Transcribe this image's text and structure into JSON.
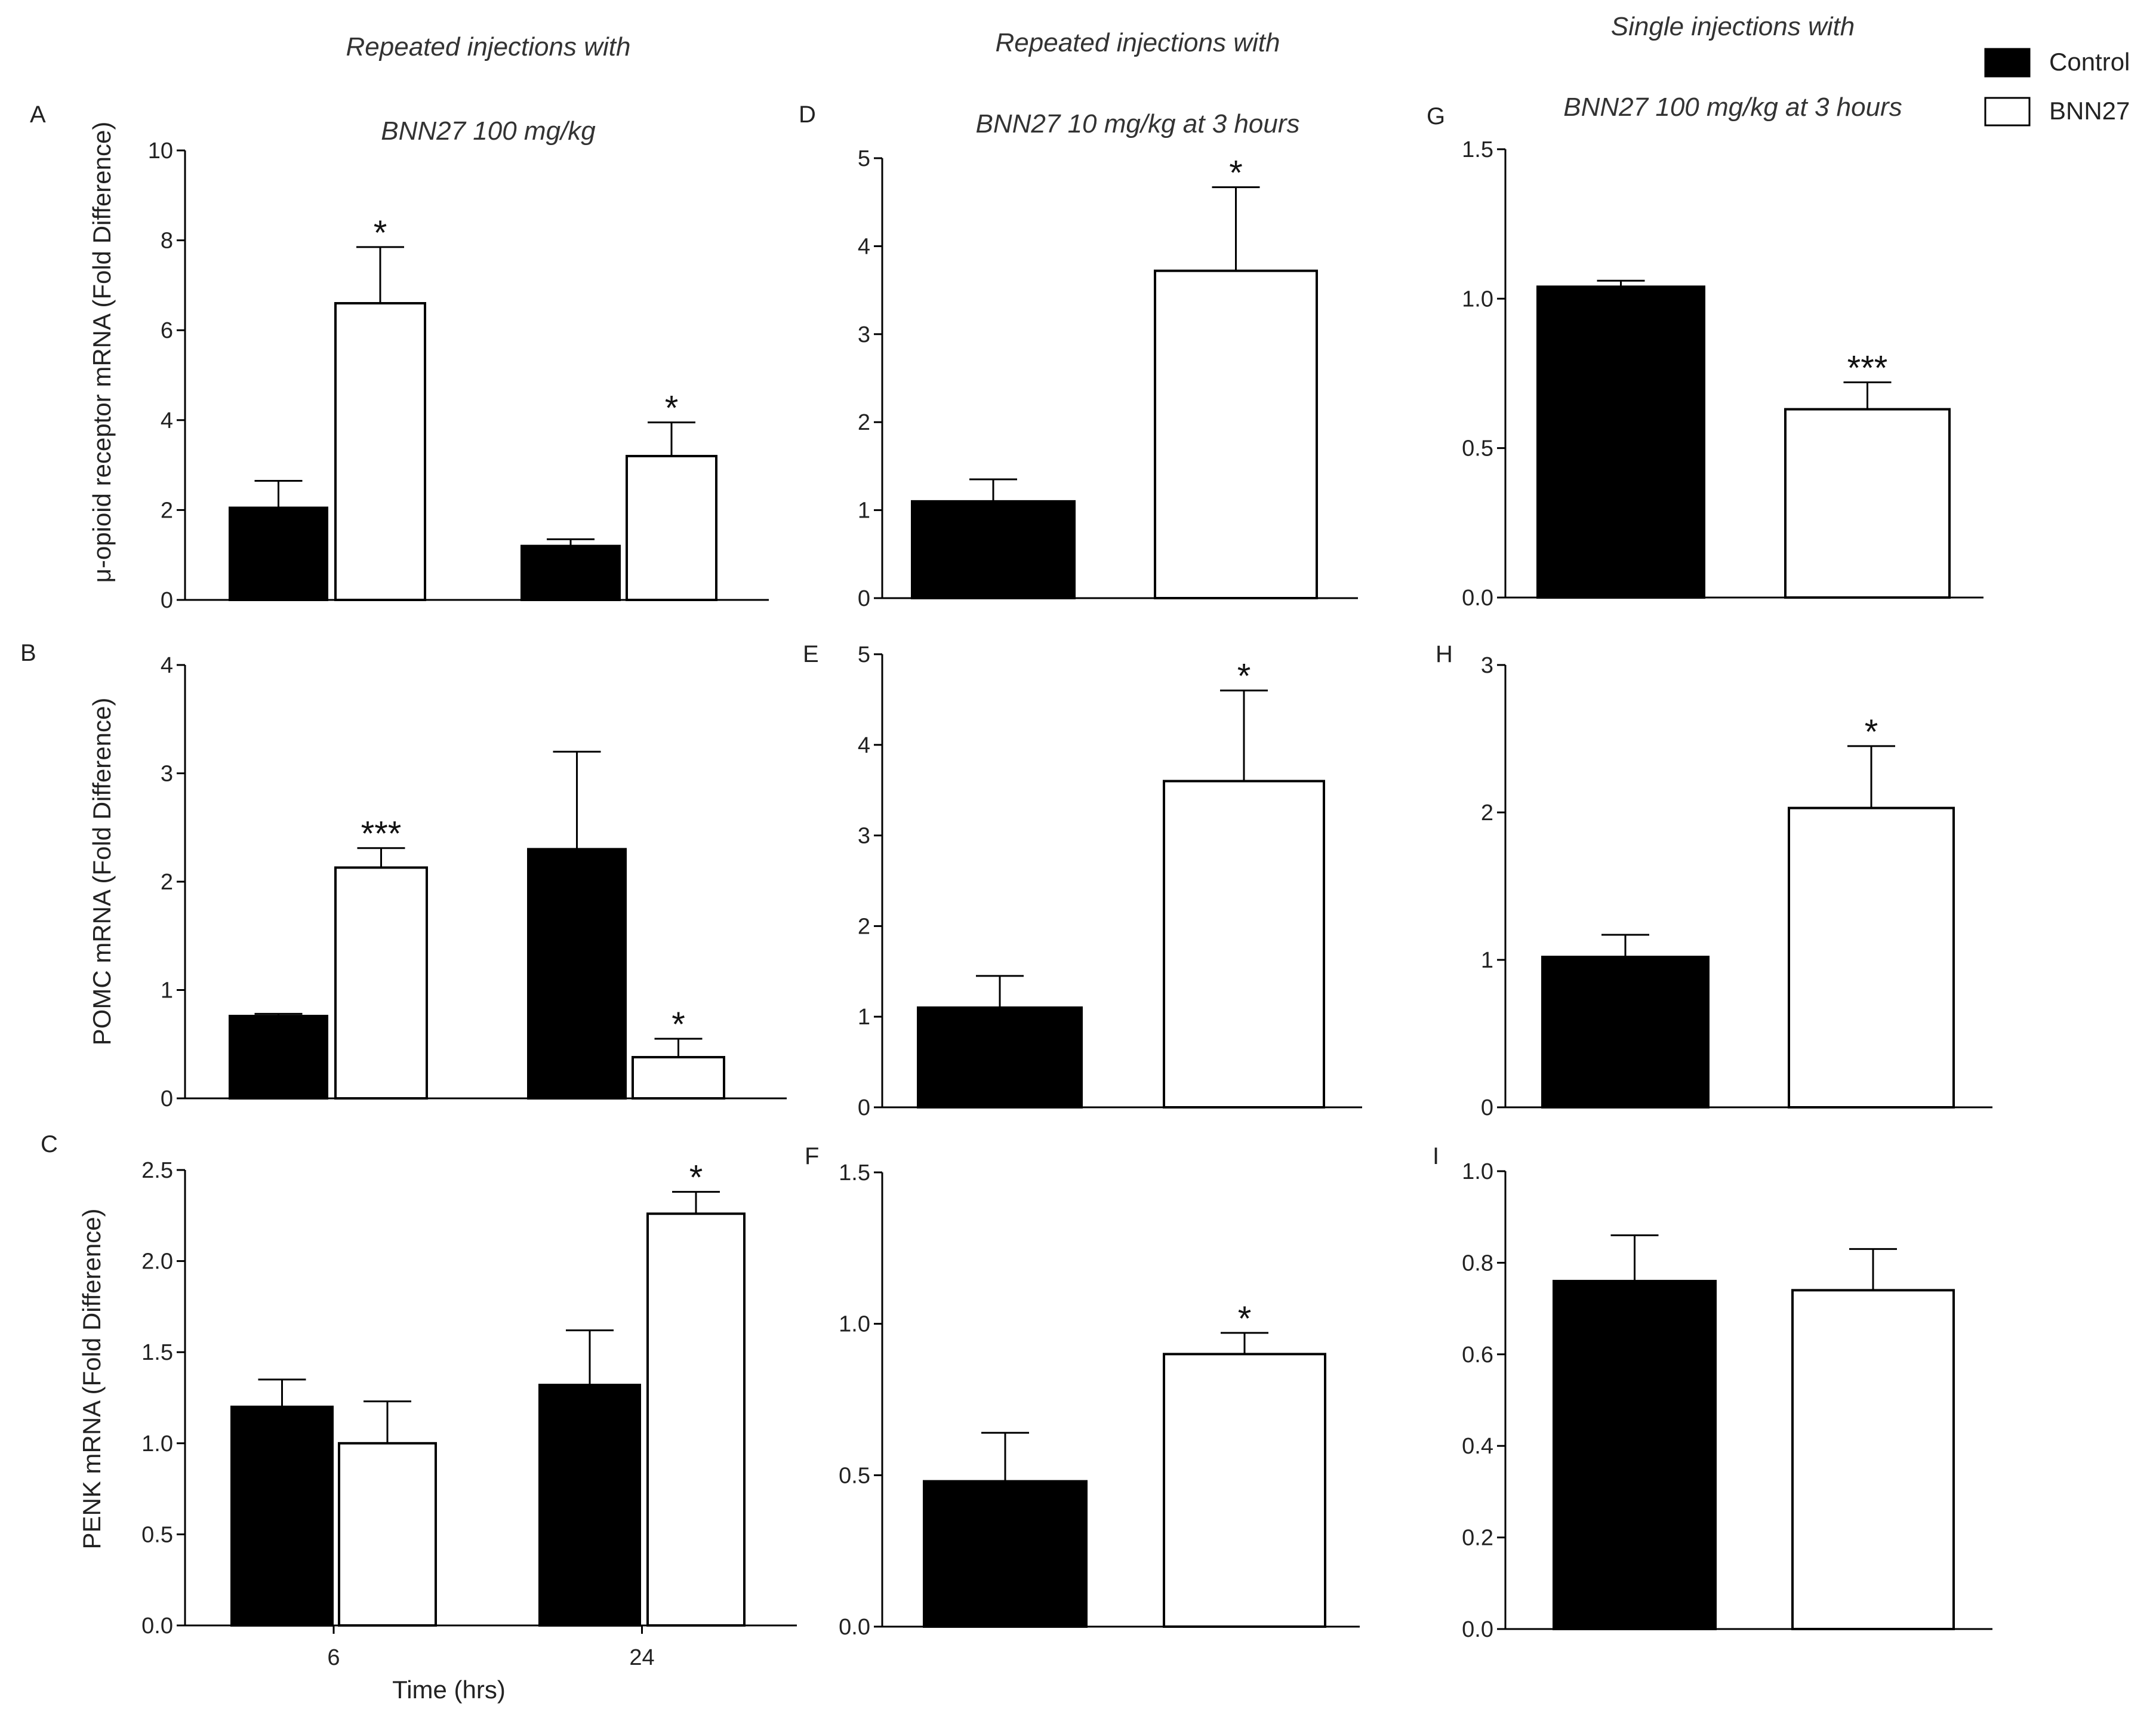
{
  "column_titles": [
    {
      "line1": "Repeated injections with",
      "line2": "BNN27 100 mg/kg"
    },
    {
      "line1": "Repeated injections with",
      "line2": "BNN27 10 mg/kg at 3 hours"
    },
    {
      "line1": "Single injections with",
      "line2": "BNN27 100 mg/kg at 3 hours"
    }
  ],
  "legend": [
    {
      "label": "Control",
      "color": "#000000",
      "fill": "solid"
    },
    {
      "label": "BNN27",
      "color": "#ffffff",
      "fill": "outline"
    }
  ],
  "row_ylabels": [
    "μ-opioid receptor mRNA (Fold Difference)",
    "POMC     mRNA (Fold Difference)",
    "PENK mRNA (Fold Difference)"
  ],
  "xaxis": {
    "label": "Time (hrs)"
  },
  "colors": {
    "control": "#000000",
    "bnn27": "#ffffff",
    "axis": "#000000"
  },
  "chart_data": [
    {
      "panel": "A",
      "type": "bar",
      "categories": [
        "6",
        "24"
      ],
      "show_category_labels": false,
      "ylim": [
        0,
        10
      ],
      "yticks": [
        "0",
        "2",
        "4",
        "6",
        "8",
        "10"
      ],
      "series": [
        {
          "name": "Control",
          "values": [
            2.05,
            1.2
          ],
          "errors": [
            0.6,
            0.15
          ]
        },
        {
          "name": "BNN27",
          "values": [
            6.6,
            3.2
          ],
          "errors": [
            1.25,
            0.75
          ]
        }
      ],
      "annotations": [
        {
          "series": 1,
          "index": 0,
          "text": "*"
        },
        {
          "series": 1,
          "index": 1,
          "text": "*"
        }
      ]
    },
    {
      "panel": "D",
      "type": "bar",
      "categories": [
        ""
      ],
      "ylim": [
        0,
        5
      ],
      "yticks": [
        "0",
        "1",
        "2",
        "3",
        "4",
        "5"
      ],
      "series": [
        {
          "name": "Control",
          "values": [
            1.1
          ],
          "errors": [
            0.25
          ]
        },
        {
          "name": "BNN27",
          "values": [
            3.72
          ],
          "errors": [
            0.95
          ]
        }
      ],
      "annotations": [
        {
          "series": 1,
          "index": 0,
          "text": "*"
        }
      ]
    },
    {
      "panel": "G",
      "type": "bar",
      "categories": [
        ""
      ],
      "ylim": [
        0,
        1.5
      ],
      "yticks": [
        "0.0",
        "0.5",
        "1.0",
        "1.5"
      ],
      "series": [
        {
          "name": "Control",
          "values": [
            1.04
          ],
          "errors": [
            0.02
          ]
        },
        {
          "name": "BNN27",
          "values": [
            0.63
          ],
          "errors": [
            0.09
          ]
        }
      ],
      "annotations": [
        {
          "series": 1,
          "index": 0,
          "text": "***"
        }
      ]
    },
    {
      "panel": "B",
      "type": "bar",
      "categories": [
        "6",
        "24"
      ],
      "show_category_labels": false,
      "ylim": [
        0,
        4
      ],
      "yticks": [
        "0",
        "1",
        "2",
        "3",
        "4"
      ],
      "series": [
        {
          "name": "Control",
          "values": [
            0.76,
            2.3
          ],
          "errors": [
            0.02,
            0.9
          ]
        },
        {
          "name": "BNN27",
          "values": [
            2.13,
            0.38
          ],
          "errors": [
            0.18,
            0.17
          ]
        }
      ],
      "annotations": [
        {
          "series": 1,
          "index": 0,
          "text": "***"
        },
        {
          "series": 1,
          "index": 1,
          "text": "*"
        }
      ]
    },
    {
      "panel": "E",
      "type": "bar",
      "categories": [
        ""
      ],
      "ylim": [
        0,
        5
      ],
      "yticks": [
        "0",
        "1",
        "2",
        "3",
        "4",
        "5"
      ],
      "series": [
        {
          "name": "Control",
          "values": [
            1.1
          ],
          "errors": [
            0.35
          ]
        },
        {
          "name": "BNN27",
          "values": [
            3.6
          ],
          "errors": [
            1.0
          ]
        }
      ],
      "annotations": [
        {
          "series": 1,
          "index": 0,
          "text": "*"
        }
      ]
    },
    {
      "panel": "H",
      "type": "bar",
      "categories": [
        ""
      ],
      "ylim": [
        0,
        3
      ],
      "yticks": [
        "0",
        "1",
        "2",
        "3"
      ],
      "series": [
        {
          "name": "Control",
          "values": [
            1.02
          ],
          "errors": [
            0.15
          ]
        },
        {
          "name": "BNN27",
          "values": [
            2.03
          ],
          "errors": [
            0.42
          ]
        }
      ],
      "annotations": [
        {
          "series": 1,
          "index": 0,
          "text": "*"
        }
      ]
    },
    {
      "panel": "C",
      "type": "bar",
      "categories": [
        "6",
        "24"
      ],
      "show_category_labels": true,
      "ylim": [
        0,
        2.5
      ],
      "yticks": [
        "0.0",
        "0.5",
        "1.0",
        "1.5",
        "2.0",
        "2.5"
      ],
      "series": [
        {
          "name": "Control",
          "values": [
            1.2,
            1.32
          ],
          "errors": [
            0.15,
            0.3
          ]
        },
        {
          "name": "BNN27",
          "values": [
            1.0,
            2.26
          ],
          "errors": [
            0.23,
            0.12
          ]
        }
      ],
      "annotations": [
        {
          "series": 1,
          "index": 1,
          "text": "*"
        }
      ]
    },
    {
      "panel": "F",
      "type": "bar",
      "categories": [
        ""
      ],
      "ylim": [
        0,
        1.5
      ],
      "yticks": [
        "0.0",
        "0.5",
        "1.0",
        "1.5"
      ],
      "series": [
        {
          "name": "Control",
          "values": [
            0.48
          ],
          "errors": [
            0.16
          ]
        },
        {
          "name": "BNN27",
          "values": [
            0.9
          ],
          "errors": [
            0.07
          ]
        }
      ],
      "annotations": [
        {
          "series": 1,
          "index": 0,
          "text": "*"
        }
      ]
    },
    {
      "panel": "I",
      "type": "bar",
      "categories": [
        ""
      ],
      "ylim": [
        0,
        1.0
      ],
      "yticks": [
        "0.0",
        "0.2",
        "0.4",
        "0.6",
        "0.8",
        "1.0"
      ],
      "series": [
        {
          "name": "Control",
          "values": [
            0.76
          ],
          "errors": [
            0.1
          ]
        },
        {
          "name": "BNN27",
          "values": [
            0.74
          ],
          "errors": [
            0.09
          ]
        }
      ],
      "annotations": []
    }
  ]
}
